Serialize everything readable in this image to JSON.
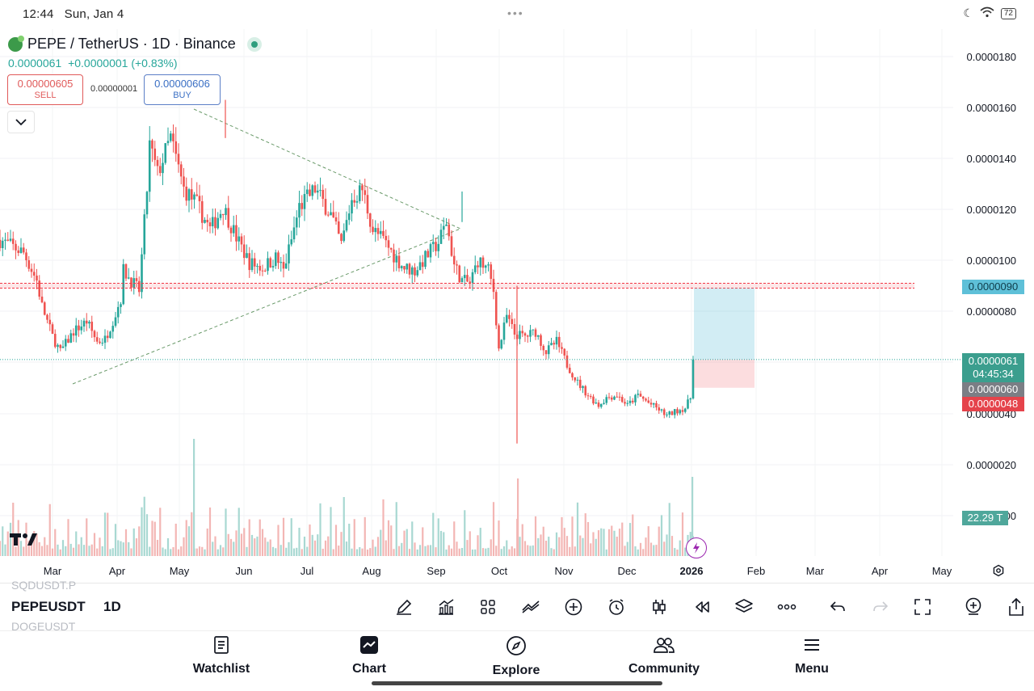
{
  "status_bar": {
    "time": "12:44",
    "date": "Sun, Jan 4",
    "battery": "72"
  },
  "header": {
    "symbol_title": "PEPE / TetherUS · 1D · Binance",
    "last_price": "0.0000061",
    "change": "+0.0000001",
    "change_pct": "(+0.83%)",
    "sell_price": "0.00000605",
    "sell_label": "SELL",
    "spread": "0.00000001",
    "buy_price": "0.00000606",
    "buy_label": "BUY"
  },
  "price_axis": {
    "labels": [
      "0.0000180",
      "0.0000160",
      "0.0000140",
      "0.0000120",
      "0.0000100",
      "0.0000080",
      "0.0000040",
      "0.0000020",
      "00"
    ],
    "tags": {
      "level_line": "0.0000090",
      "current_price": "0.0000061",
      "countdown": "04:45:34",
      "entry": "0.0000060",
      "stop": "0.0000048",
      "volume": "22.29 T"
    }
  },
  "time_axis": [
    "Mar",
    "Apr",
    "May",
    "Jun",
    "Jul",
    "Aug",
    "Sep",
    "Oct",
    "Nov",
    "Dec",
    "2026",
    "Feb",
    "Mar",
    "Apr",
    "May"
  ],
  "chart_data": {
    "type": "candlestick",
    "symbol": "PEPEUSDT",
    "interval": "1D",
    "y_axis_range": [
      1.5e-06,
      1.85e-05
    ],
    "horizontal_level": 9e-06,
    "current_price": 6.1e-06,
    "approx_closes": [
      {
        "x": "Feb",
        "y": 1.05e-05
      },
      {
        "x": "Mar",
        "y": 8.5e-06
      },
      {
        "x": "mid-Mar",
        "y": 6.2e-06
      },
      {
        "x": "Apr",
        "y": 7.5e-06
      },
      {
        "x": "mid-Apr",
        "y": 6.7e-06
      },
      {
        "x": "May",
        "y": 9e-06
      },
      {
        "x": "mid-May",
        "y": 1.4e-05
      },
      {
        "x": "Jun",
        "y": 1.25e-05
      },
      {
        "x": "mid-Jun",
        "y": 1.1e-05
      },
      {
        "x": "Jul",
        "y": 9.5e-06
      },
      {
        "x": "mid-Jul",
        "y": 1.2e-05
      },
      {
        "x": "late-Jul",
        "y": 1.4e-05
      },
      {
        "x": "Aug",
        "y": 1.15e-05
      },
      {
        "x": "mid-Aug",
        "y": 1.22e-05
      },
      {
        "x": "Sep",
        "y": 9.8e-06
      },
      {
        "x": "mid-Sep",
        "y": 1.2e-05
      },
      {
        "x": "Oct",
        "y": 9.5e-06
      },
      {
        "x": "mid-Oct",
        "y": 8e-06
      },
      {
        "x": "Nov",
        "y": 7e-06
      },
      {
        "x": "mid-Nov",
        "y": 4.8e-06
      },
      {
        "x": "Dec",
        "y": 4.6e-06
      },
      {
        "x": "mid-Dec",
        "y": 4.5e-06
      },
      {
        "x": "late-Dec",
        "y": 4e-06
      },
      {
        "x": "2026",
        "y": 6.1e-06
      }
    ]
  },
  "toolbar": {
    "symbol": "PEPEUSDT",
    "interval": "1D",
    "ghost_symbols": [
      "SQDUSDT.P",
      "DOGEUSDT"
    ]
  },
  "bottom_nav": [
    {
      "label": "Watchlist"
    },
    {
      "label": "Chart"
    },
    {
      "label": "Explore"
    },
    {
      "label": "Community"
    },
    {
      "label": "Menu"
    }
  ],
  "colors": {
    "up": "#26a69a",
    "down": "#ef5350",
    "level": "#f23645",
    "blue_tag": "#5ec0d8"
  }
}
